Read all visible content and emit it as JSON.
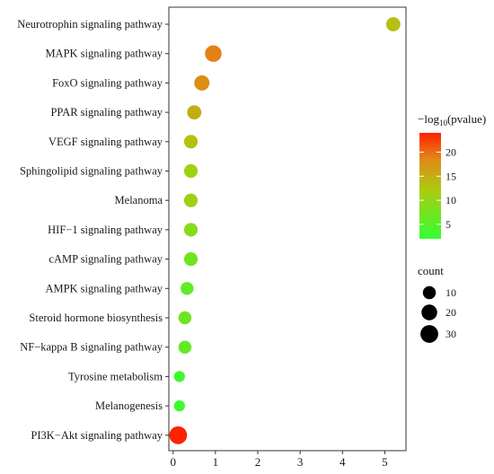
{
  "chart_data": {
    "type": "scatter",
    "title": "",
    "xlabel": "",
    "ylabel": "",
    "xlim": [
      -0.1,
      5.5
    ],
    "xticks": [
      0,
      1,
      2,
      3,
      4,
      5
    ],
    "xtick_labels": [
      "0",
      "1",
      "2",
      "3",
      "4",
      "5"
    ],
    "grid": false,
    "categories": [
      "Neurotrophin signaling pathway",
      "MAPK signaling pathway",
      "FoxO signaling pathway",
      "PPAR signaling pathway",
      "VEGF signaling pathway",
      "Sphingolipid signaling pathway",
      "Melanoma",
      "HIF−1 signaling pathway",
      "cAMP signaling pathway",
      "AMPK signaling pathway",
      "Steroid hormone biosynthesis",
      "NF−kappa B signaling pathway",
      "Tyrosine metabolism",
      "Melanogenesis",
      "PI3K−Akt signaling pathway"
    ],
    "points": [
      {
        "pathway": "Neurotrophin signaling pathway",
        "x": 5.2,
        "neglog10p": 13,
        "count": 14
      },
      {
        "pathway": "MAPK signaling pathway",
        "x": 0.95,
        "neglog10p": 19,
        "count": 24
      },
      {
        "pathway": "FoxO signaling pathway",
        "x": 0.68,
        "neglog10p": 18,
        "count": 18
      },
      {
        "pathway": "PPAR signaling pathway",
        "x": 0.5,
        "neglog10p": 15,
        "count": 14
      },
      {
        "pathway": "VEGF signaling pathway",
        "x": 0.42,
        "neglog10p": 13,
        "count": 12
      },
      {
        "pathway": "Sphingolipid signaling pathway",
        "x": 0.42,
        "neglog10p": 11,
        "count": 12
      },
      {
        "pathway": "Melanoma",
        "x": 0.42,
        "neglog10p": 11,
        "count": 12
      },
      {
        "pathway": "HIF−1 signaling pathway",
        "x": 0.42,
        "neglog10p": 9,
        "count": 12
      },
      {
        "pathway": "cAMP signaling pathway",
        "x": 0.42,
        "neglog10p": 7,
        "count": 12
      },
      {
        "pathway": "AMPK signaling pathway",
        "x": 0.33,
        "neglog10p": 6,
        "count": 10
      },
      {
        "pathway": "Steroid hormone biosynthesis",
        "x": 0.28,
        "neglog10p": 7,
        "count": 10
      },
      {
        "pathway": "NF−kappa B signaling pathway",
        "x": 0.28,
        "neglog10p": 6,
        "count": 10
      },
      {
        "pathway": "Tyrosine metabolism",
        "x": 0.15,
        "neglog10p": 3,
        "count": 5
      },
      {
        "pathway": "Melanogenesis",
        "x": 0.15,
        "neglog10p": 3,
        "count": 5
      },
      {
        "pathway": "PI3K−Akt signaling pathway",
        "x": 0.12,
        "neglog10p": 24,
        "count": 30
      }
    ],
    "color_legend": {
      "title_prefix": "−log",
      "title_sub": "10",
      "title_suffix": "(pvalue)",
      "min": 2,
      "max": 24,
      "ticks": [
        5,
        10,
        15,
        20
      ],
      "tick_labels": [
        "5",
        "10",
        "15",
        "20"
      ],
      "low_color": "#33ff33",
      "high_color": "#ff2200"
    },
    "size_legend": {
      "title": "count",
      "values": [
        10,
        20,
        30
      ],
      "labels": [
        "10",
        "20",
        "30"
      ]
    }
  }
}
